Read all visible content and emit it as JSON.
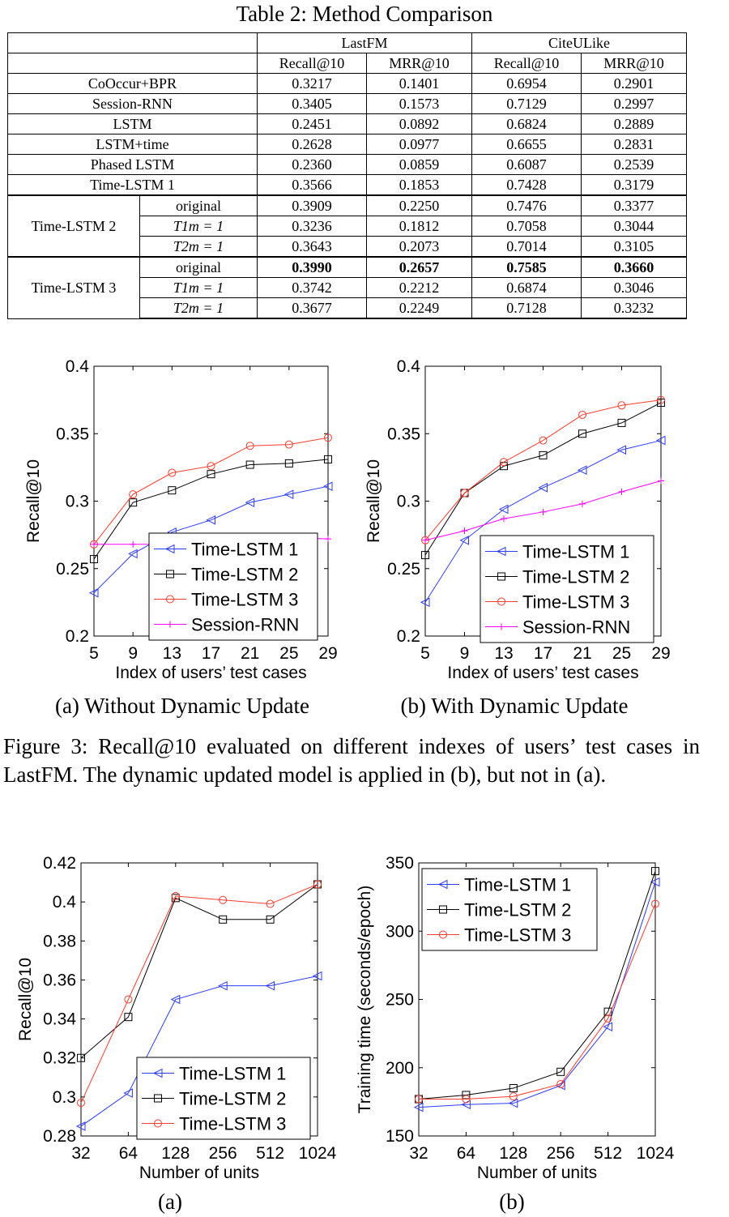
{
  "table": {
    "title": "Table 2: Method Comparison",
    "datasets": [
      "LastFM",
      "CiteULike"
    ],
    "metrics": [
      "Recall@10",
      "MRR@10",
      "Recall@10",
      "MRR@10"
    ],
    "rows": [
      {
        "method": "CoOccur+BPR",
        "values": [
          "0.3217",
          "0.1401",
          "0.6954",
          "0.2901"
        ]
      },
      {
        "method": "Session-RNN",
        "values": [
          "0.3405",
          "0.1573",
          "0.7129",
          "0.2997"
        ]
      },
      {
        "method": "LSTM",
        "values": [
          "0.2451",
          "0.0892",
          "0.6824",
          "0.2889"
        ]
      },
      {
        "method": "LSTM+time",
        "values": [
          "0.2628",
          "0.0977",
          "0.6655",
          "0.2831"
        ]
      },
      {
        "method": "Phased LSTM",
        "values": [
          "0.2360",
          "0.0859",
          "0.6087",
          "0.2539"
        ]
      },
      {
        "method": "Time-LSTM 1",
        "values": [
          "0.3566",
          "0.1853",
          "0.7428",
          "0.3179"
        ]
      }
    ],
    "groups": [
      {
        "method": "Time-LSTM 2",
        "rows": [
          {
            "variant": "original",
            "values": [
              "0.3909",
              "0.2250",
              "0.7476",
              "0.3377"
            ]
          },
          {
            "variant": "T1m = 1",
            "values": [
              "0.3236",
              "0.1812",
              "0.7058",
              "0.3044"
            ]
          },
          {
            "variant": "T2m = 1",
            "values": [
              "0.3643",
              "0.2073",
              "0.7014",
              "0.3105"
            ]
          }
        ]
      },
      {
        "method": "Time-LSTM 3",
        "rows": [
          {
            "variant": "original",
            "values": [
              "0.3990",
              "0.2657",
              "0.7585",
              "0.3660"
            ],
            "bold": true
          },
          {
            "variant": "T1m = 1",
            "values": [
              "0.3742",
              "0.2212",
              "0.6874",
              "0.3046"
            ]
          },
          {
            "variant": "T2m = 1",
            "values": [
              "0.3677",
              "0.2249",
              "0.7128",
              "0.3232"
            ]
          }
        ]
      }
    ]
  },
  "figure3": {
    "caption": "Figure 3: Recall@10 evaluated on different indexes of users’ test cases in LastFM. The dynamic updated model is applied in (b), but not in (a).",
    "subcaptions": [
      "(a)  Without Dynamic Update",
      "(b)  With Dynamic Update"
    ]
  },
  "figure4": {
    "subcaptions": [
      "(a)",
      "(b)"
    ]
  },
  "colors": {
    "time_lstm_1": "#2b3bff",
    "time_lstm_2": "#000000",
    "time_lstm_3": "#ff3b2b",
    "session_rnn": "#ff00ff"
  },
  "chart_data": [
    {
      "type": "line",
      "xlabel": "Index of users’ test cases",
      "ylabel": "Recall@10",
      "x": [
        5,
        9,
        13,
        17,
        21,
        25,
        29
      ],
      "xticks": [
        "5",
        "9",
        "13",
        "17",
        "21",
        "25",
        "29"
      ],
      "ylim": [
        0.2,
        0.4
      ],
      "yticks": [
        "0.2",
        "0.25",
        "0.3",
        "0.35",
        "0.4"
      ],
      "legend": "bottom-right",
      "series": [
        {
          "name": "Time-LSTM 1",
          "marker": "triangle-left",
          "color": "#2b3bff",
          "values": [
            0.232,
            0.261,
            0.277,
            0.286,
            0.299,
            0.305,
            0.311
          ]
        },
        {
          "name": "Time-LSTM 2",
          "marker": "square",
          "color": "#000000",
          "values": [
            0.257,
            0.299,
            0.308,
            0.32,
            0.327,
            0.328,
            0.331
          ]
        },
        {
          "name": "Time-LSTM 3",
          "marker": "circle",
          "color": "#ff3b2b",
          "values": [
            0.268,
            0.305,
            0.321,
            0.326,
            0.341,
            0.342,
            0.347
          ]
        },
        {
          "name": "Session-RNN",
          "marker": "plus",
          "color": "#ff00ff",
          "values": [
            0.268,
            0.268,
            0.268,
            0.27,
            0.274,
            0.273,
            0.272
          ]
        }
      ]
    },
    {
      "type": "line",
      "xlabel": "Index of users’ test cases",
      "ylabel": "Recall@10",
      "x": [
        5,
        9,
        13,
        17,
        21,
        25,
        29
      ],
      "xticks": [
        "5",
        "9",
        "13",
        "17",
        "21",
        "25",
        "29"
      ],
      "ylim": [
        0.2,
        0.4
      ],
      "yticks": [
        "0.2",
        "0.25",
        "0.3",
        "0.35",
        "0.4"
      ],
      "legend": "bottom-right",
      "series": [
        {
          "name": "Time-LSTM 1",
          "marker": "triangle-left",
          "color": "#2b3bff",
          "values": [
            0.225,
            0.271,
            0.294,
            0.31,
            0.323,
            0.338,
            0.345
          ]
        },
        {
          "name": "Time-LSTM 2",
          "marker": "square",
          "color": "#000000",
          "values": [
            0.26,
            0.306,
            0.326,
            0.334,
            0.35,
            0.358,
            0.373
          ]
        },
        {
          "name": "Time-LSTM 3",
          "marker": "circle",
          "color": "#ff3b2b",
          "values": [
            0.271,
            0.306,
            0.329,
            0.345,
            0.364,
            0.371,
            0.375
          ]
        },
        {
          "name": "Session-RNN",
          "marker": "plus",
          "color": "#ff00ff",
          "values": [
            0.271,
            0.278,
            0.287,
            0.292,
            0.298,
            0.307,
            0.315
          ]
        }
      ]
    },
    {
      "type": "line",
      "xlabel": "Number of units",
      "ylabel": "Recall@10",
      "categories": [
        "32",
        "64",
        "128",
        "256",
        "512",
        "1024"
      ],
      "ylim": [
        0.28,
        0.42
      ],
      "yticks": [
        "0.28",
        "0.3",
        "0.32",
        "0.34",
        "0.36",
        "0.38",
        "0.4",
        "0.42"
      ],
      "legend": "bottom-right",
      "series": [
        {
          "name": "Time-LSTM 1",
          "marker": "triangle-left",
          "color": "#2b3bff",
          "values": [
            0.285,
            0.302,
            0.35,
            0.357,
            0.357,
            0.362
          ]
        },
        {
          "name": "Time-LSTM 2",
          "marker": "square",
          "color": "#000000",
          "values": [
            0.32,
            0.341,
            0.402,
            0.391,
            0.391,
            0.409
          ]
        },
        {
          "name": "Time-LSTM 3",
          "marker": "circle",
          "color": "#ff3b2b",
          "values": [
            0.297,
            0.35,
            0.403,
            0.401,
            0.399,
            0.409
          ]
        }
      ]
    },
    {
      "type": "line",
      "xlabel": "Number of units",
      "ylabel": "Training time (seconds/epoch)",
      "categories": [
        "32",
        "64",
        "128",
        "256",
        "512",
        "1024"
      ],
      "ylim": [
        150,
        350
      ],
      "yticks": [
        "150",
        "200",
        "250",
        "300",
        "350"
      ],
      "legend": "top-left",
      "series": [
        {
          "name": "Time-LSTM 1",
          "marker": "triangle-left",
          "color": "#2b3bff",
          "values": [
            171,
            173,
            174,
            187,
            230,
            336
          ]
        },
        {
          "name": "Time-LSTM 2",
          "marker": "square",
          "color": "#000000",
          "values": [
            177,
            180,
            185,
            197,
            241,
            344
          ]
        },
        {
          "name": "Time-LSTM 3",
          "marker": "circle",
          "color": "#ff3b2b",
          "values": [
            177,
            177,
            179,
            188,
            236,
            320
          ]
        }
      ]
    }
  ]
}
